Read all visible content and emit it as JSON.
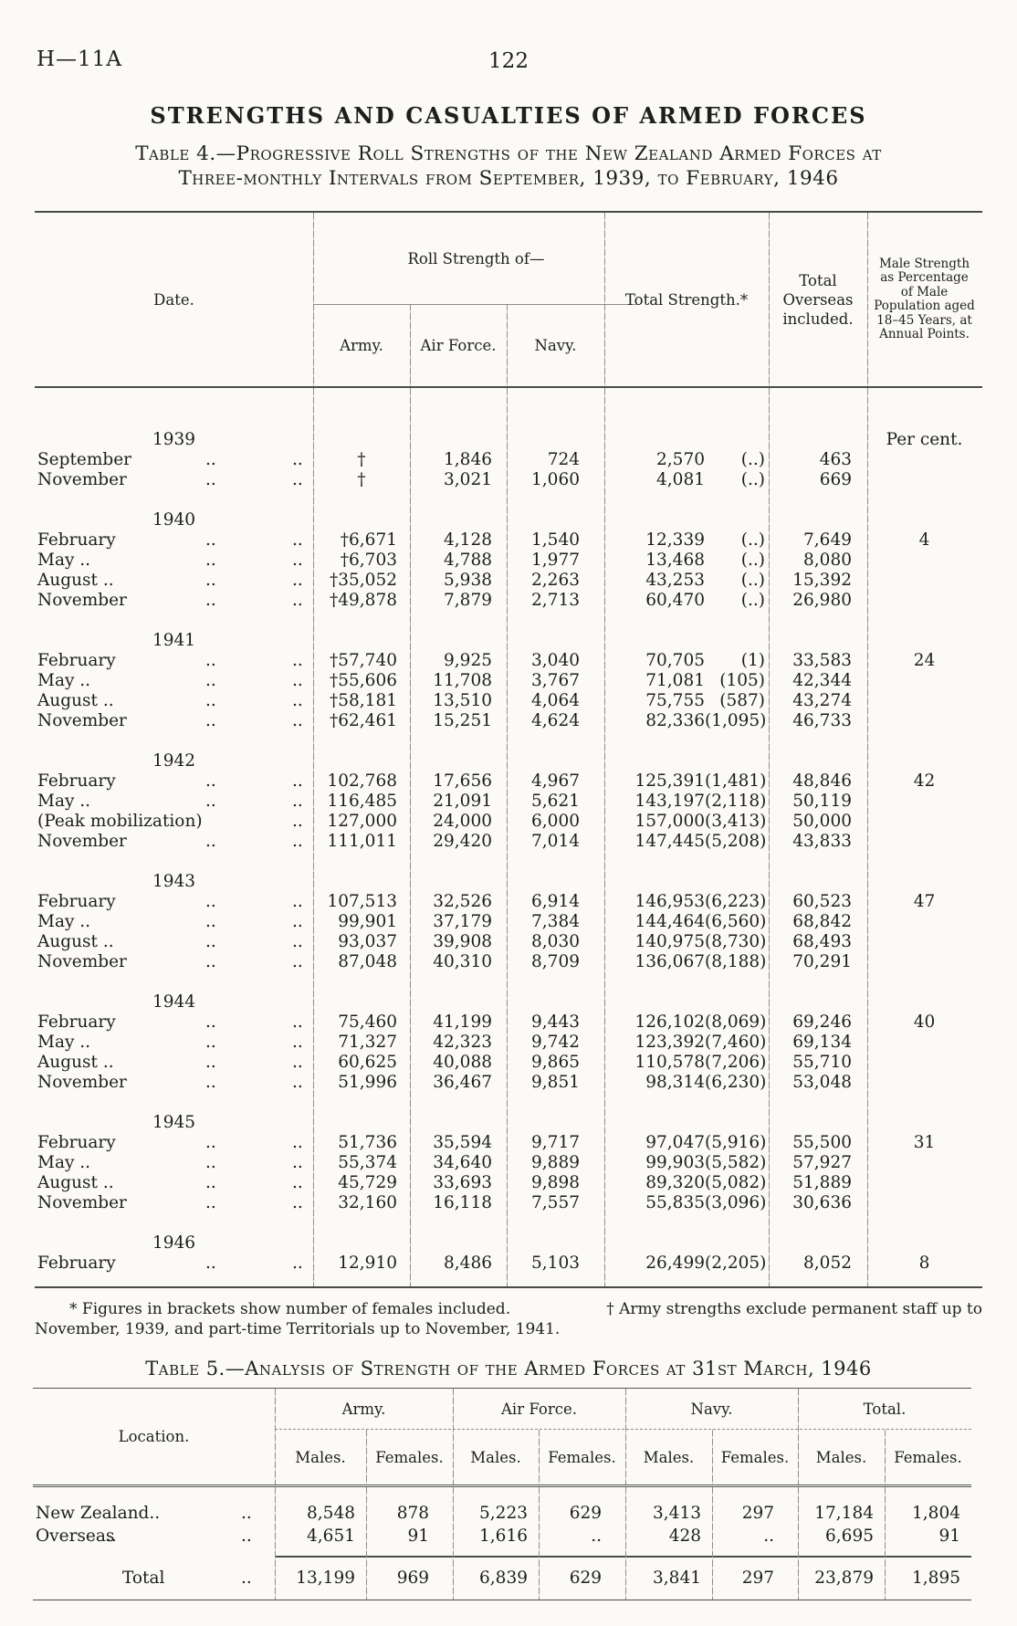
{
  "palette": {
    "paper": "#fbfaf6",
    "ink": "#1e1e1e",
    "rule": "#4a4a4a"
  },
  "masthead": {
    "doc_ref": "H—11A",
    "page_number": "122"
  },
  "heading": "STRENGTHS AND CASUALTIES OF ARMED FORCES",
  "table4": {
    "title_line1": "Table 4.—Progressive Roll Strengths of the New Zealand Armed Forces at",
    "title_line2": "Three-monthly Intervals from September, 1939, to February, 1946",
    "columns": {
      "date": "Date.",
      "roll_strength_group": "Roll Strength of—",
      "army": "Army.",
      "air_force": "Air Force.",
      "navy": "Navy.",
      "total_strength": "Total Strength.*",
      "total_overseas": "Total Overseas included.",
      "male_percent": "Male Strength as Percentage of Male Population aged 18–45 Years, at Annual Points."
    },
    "groups": [
      {
        "year": "1939",
        "percent_note": "Per cent.",
        "rows": [
          {
            "month": "September",
            "dots1": "..",
            "dots2": "..",
            "army": "†",
            "air_force": "1,846",
            "navy": "724",
            "total": "2,570",
            "bracket": "(..)",
            "overseas": "463",
            "percent": ""
          },
          {
            "month": "November",
            "dots1": "..",
            "dots2": "..",
            "army": "†",
            "air_force": "3,021",
            "navy": "1,060",
            "total": "4,081",
            "bracket": "(..)",
            "overseas": "669",
            "percent": ""
          }
        ]
      },
      {
        "year": "1940",
        "percent_note": "",
        "rows": [
          {
            "month": "February",
            "dots1": "..",
            "dots2": "..",
            "army": "†6,671",
            "air_force": "4,128",
            "navy": "1,540",
            "total": "12,339",
            "bracket": "(..)",
            "overseas": "7,649",
            "percent": "4"
          },
          {
            "month": "May ..",
            "dots1": "..",
            "dots2": "..",
            "army": "†6,703",
            "air_force": "4,788",
            "navy": "1,977",
            "total": "13,468",
            "bracket": "(..)",
            "overseas": "8,080",
            "percent": ""
          },
          {
            "month": "August ..",
            "dots1": "..",
            "dots2": "..",
            "army": "†35,052",
            "air_force": "5,938",
            "navy": "2,263",
            "total": "43,253",
            "bracket": "(..)",
            "overseas": "15,392",
            "percent": ""
          },
          {
            "month": "November",
            "dots1": "..",
            "dots2": "..",
            "army": "†49,878",
            "air_force": "7,879",
            "navy": "2,713",
            "total": "60,470",
            "bracket": "(..)",
            "overseas": "26,980",
            "percent": ""
          }
        ]
      },
      {
        "year": "1941",
        "percent_note": "",
        "rows": [
          {
            "month": "February",
            "dots1": "..",
            "dots2": "..",
            "army": "†57,740",
            "air_force": "9,925",
            "navy": "3,040",
            "total": "70,705",
            "bracket": "(1)",
            "overseas": "33,583",
            "percent": "24"
          },
          {
            "month": "May ..",
            "dots1": "..",
            "dots2": "..",
            "army": "†55,606",
            "air_force": "11,708",
            "navy": "3,767",
            "total": "71,081",
            "bracket": "(105)",
            "overseas": "42,344",
            "percent": ""
          },
          {
            "month": "August ..",
            "dots1": "..",
            "dots2": "..",
            "army": "†58,181",
            "air_force": "13,510",
            "navy": "4,064",
            "total": "75,755",
            "bracket": "(587)",
            "overseas": "43,274",
            "percent": ""
          },
          {
            "month": "November",
            "dots1": "..",
            "dots2": "..",
            "army": "†62,461",
            "air_force": "15,251",
            "navy": "4,624",
            "total": "82,336",
            "bracket": "(1,095)",
            "overseas": "46,733",
            "percent": ""
          }
        ]
      },
      {
        "year": "1942",
        "percent_note": "",
        "rows": [
          {
            "month": "February",
            "dots1": "..",
            "dots2": "..",
            "army": "102,768",
            "air_force": "17,656",
            "navy": "4,967",
            "total": "125,391",
            "bracket": "(1,481)",
            "overseas": "48,846",
            "percent": "42"
          },
          {
            "month": "May ..",
            "dots1": "..",
            "dots2": "..",
            "army": "116,485",
            "air_force": "21,091",
            "navy": "5,621",
            "total": "143,197",
            "bracket": "(2,118)",
            "overseas": "50,119",
            "percent": ""
          },
          {
            "month": "(Peak mobilization)",
            "dots1": "",
            "dots2": "..",
            "army": "127,000",
            "air_force": "24,000",
            "navy": "6,000",
            "total": "157,000",
            "bracket": "(3,413)",
            "overseas": "50,000",
            "percent": ""
          },
          {
            "month": "November",
            "dots1": "..",
            "dots2": "..",
            "army": "111,011",
            "air_force": "29,420",
            "navy": "7,014",
            "total": "147,445",
            "bracket": "(5,208)",
            "overseas": "43,833",
            "percent": ""
          }
        ]
      },
      {
        "year": "1943",
        "percent_note": "",
        "rows": [
          {
            "month": "February",
            "dots1": "..",
            "dots2": "..",
            "army": "107,513",
            "air_force": "32,526",
            "navy": "6,914",
            "total": "146,953",
            "bracket": "(6,223)",
            "overseas": "60,523",
            "percent": "47"
          },
          {
            "month": "May ..",
            "dots1": "..",
            "dots2": "..",
            "army": "99,901",
            "air_force": "37,179",
            "navy": "7,384",
            "total": "144,464",
            "bracket": "(6,560)",
            "overseas": "68,842",
            "percent": ""
          },
          {
            "month": "August ..",
            "dots1": "..",
            "dots2": "..",
            "army": "93,037",
            "air_force": "39,908",
            "navy": "8,030",
            "total": "140,975",
            "bracket": "(8,730)",
            "overseas": "68,493",
            "percent": ""
          },
          {
            "month": "November",
            "dots1": "..",
            "dots2": "..",
            "army": "87,048",
            "air_force": "40,310",
            "navy": "8,709",
            "total": "136,067",
            "bracket": "(8,188)",
            "overseas": "70,291",
            "percent": ""
          }
        ]
      },
      {
        "year": "1944",
        "percent_note": "",
        "rows": [
          {
            "month": "February",
            "dots1": "..",
            "dots2": "..",
            "army": "75,460",
            "air_force": "41,199",
            "navy": "9,443",
            "total": "126,102",
            "bracket": "(8,069)",
            "overseas": "69,246",
            "percent": "40"
          },
          {
            "month": "May ..",
            "dots1": "..",
            "dots2": "..",
            "army": "71,327",
            "air_force": "42,323",
            "navy": "9,742",
            "total": "123,392",
            "bracket": "(7,460)",
            "overseas": "69,134",
            "percent": ""
          },
          {
            "month": "August ..",
            "dots1": "..",
            "dots2": "..",
            "army": "60,625",
            "air_force": "40,088",
            "navy": "9,865",
            "total": "110,578",
            "bracket": "(7,206)",
            "overseas": "55,710",
            "percent": ""
          },
          {
            "month": "November",
            "dots1": "..",
            "dots2": "..",
            "army": "51,996",
            "air_force": "36,467",
            "navy": "9,851",
            "total": "98,314",
            "bracket": "(6,230)",
            "overseas": "53,048",
            "percent": ""
          }
        ]
      },
      {
        "year": "1945",
        "percent_note": "",
        "rows": [
          {
            "month": "February",
            "dots1": "..",
            "dots2": "..",
            "army": "51,736",
            "air_force": "35,594",
            "navy": "9,717",
            "total": "97,047",
            "bracket": "(5,916)",
            "overseas": "55,500",
            "percent": "31"
          },
          {
            "month": "May ..",
            "dots1": "..",
            "dots2": "..",
            "army": "55,374",
            "air_force": "34,640",
            "navy": "9,889",
            "total": "99,903",
            "bracket": "(5,582)",
            "overseas": "57,927",
            "percent": ""
          },
          {
            "month": "August ..",
            "dots1": "..",
            "dots2": "..",
            "army": "45,729",
            "air_force": "33,693",
            "navy": "9,898",
            "total": "89,320",
            "bracket": "(5,082)",
            "overseas": "51,889",
            "percent": ""
          },
          {
            "month": "November",
            "dots1": "..",
            "dots2": "..",
            "army": "32,160",
            "air_force": "16,118",
            "navy": "7,557",
            "total": "55,835",
            "bracket": "(3,096)",
            "overseas": "30,636",
            "percent": ""
          }
        ]
      },
      {
        "year": "1946",
        "percent_note": "",
        "rows": [
          {
            "month": "February",
            "dots1": "..",
            "dots2": "..",
            "army": "12,910",
            "air_force": "8,486",
            "navy": "5,103",
            "total": "26,499",
            "bracket": "(2,205)",
            "overseas": "8,052",
            "percent": "8"
          }
        ]
      }
    ],
    "footnote_left": "* Figures in brackets show number of females included.",
    "footnote_right": "† Army strengths exclude permanent staff up to",
    "footnote_line2": "November, 1939, and part-time Territorials up to November, 1941."
  },
  "table5": {
    "title": "Table 5.—Analysis of Strength of the Armed Forces at 31st March, 1946",
    "location_header": "Location.",
    "group_headers": [
      "Army.",
      "Air Force.",
      "Navy.",
      "Total."
    ],
    "sub_headers": [
      "Males.",
      "Females."
    ],
    "rows": [
      {
        "label": "New Zealand..",
        "dots1": "",
        "dots2": "..",
        "indent": false,
        "rule_above": false,
        "values": [
          "8,548",
          "878",
          "5,223",
          "629",
          "3,413",
          "297",
          "17,184",
          "1,804"
        ]
      },
      {
        "label": "Overseas",
        "dots1": "..",
        "dots2": "..",
        "indent": false,
        "rule_above": false,
        "values": [
          "4,651",
          "91",
          "1,616",
          "..",
          "428",
          "..",
          "6,695",
          "91"
        ]
      },
      {
        "label": "Total",
        "dots1": "",
        "dots2": "..",
        "indent": true,
        "rule_above": true,
        "values": [
          "13,199",
          "969",
          "6,839",
          "629",
          "3,841",
          "297",
          "23,879",
          "1,895"
        ]
      }
    ]
  }
}
